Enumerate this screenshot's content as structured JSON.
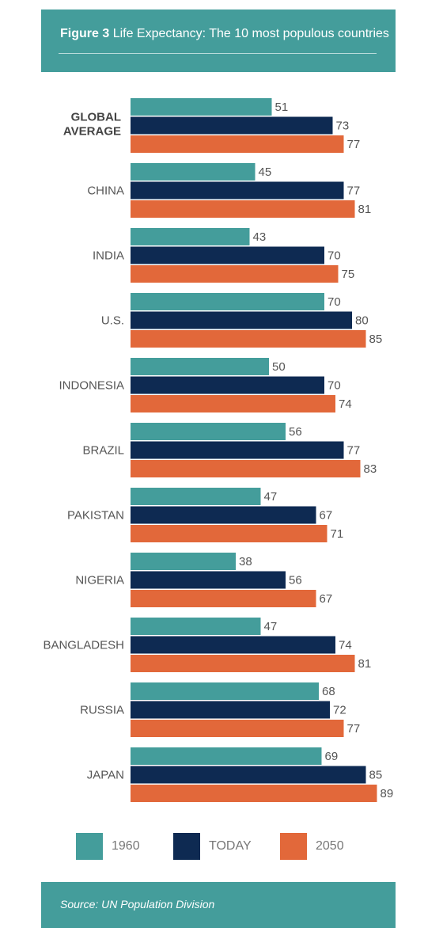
{
  "header": {
    "figure_label": "Figure 3",
    "title": "Life Expectancy: The 10 most populous countries"
  },
  "footer": {
    "source": "Source: UN Population Division"
  },
  "colors": {
    "s1960": "#449d9b",
    "today": "#0e2a52",
    "s2050": "#e2683a",
    "header_bg": "#449d9b"
  },
  "chart_data": {
    "type": "bar",
    "orientation": "horizontal",
    "categories": [
      "GLOBAL AVERAGE",
      "CHINA",
      "INDIA",
      "U.S.",
      "INDONESIA",
      "BRAZIL",
      "PAKISTAN",
      "NIGERIA",
      "BANGLADESH",
      "RUSSIA",
      "JAPAN"
    ],
    "series": [
      {
        "name": "1960",
        "values": [
          51,
          45,
          43,
          70,
          50,
          56,
          47,
          38,
          47,
          68,
          69
        ]
      },
      {
        "name": "TODAY",
        "values": [
          73,
          77,
          70,
          80,
          70,
          77,
          67,
          56,
          74,
          72,
          85
        ]
      },
      {
        "name": "2050",
        "values": [
          77,
          81,
          75,
          85,
          74,
          83,
          71,
          67,
          81,
          77,
          89
        ]
      }
    ],
    "title": "Life Expectancy: The 10 most populous countries",
    "xlabel": "",
    "ylabel": "",
    "xlim": [
      0,
      100
    ],
    "grid": false,
    "legend_position": "bottom",
    "data_labels": true
  }
}
